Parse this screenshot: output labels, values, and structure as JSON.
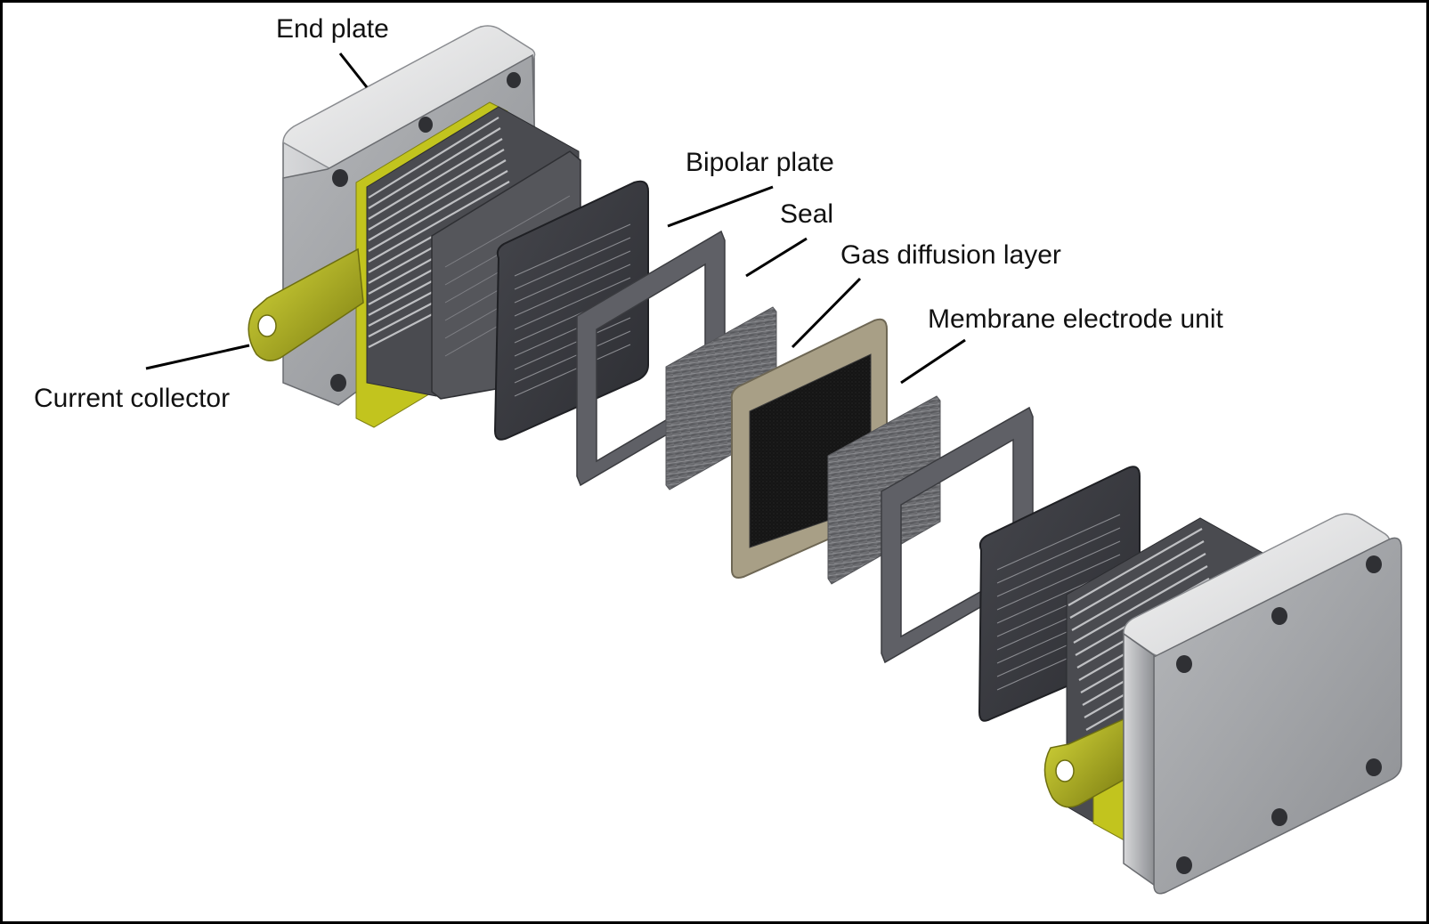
{
  "labels": {
    "end_plate": "End plate",
    "bipolar_plate": "Bipolar plate",
    "seal": "Seal",
    "gas_diffusion_layer": "Gas diffusion layer",
    "membrane_electrode_unit": "Membrane electrode unit",
    "current_collector": "Current collector"
  },
  "colors": {
    "end_plate": "#9fa1a4",
    "bipolar_plate": "#3a3b40",
    "seal": "#5f6066",
    "gas_diffusion_layer": "#6d6e72",
    "membrane_frame": "#a89f86",
    "membrane_core": "#111111",
    "current_collector": "#c2c41e"
  }
}
